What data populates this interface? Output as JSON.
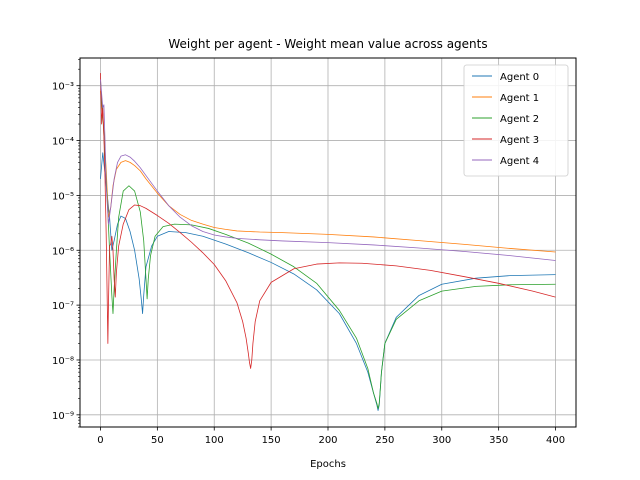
{
  "chart_data": {
    "type": "line",
    "title": "Weight per agent - Weight mean value across agents",
    "xlabel": "Epochs",
    "ylabel": "",
    "xlim": [
      -18,
      418
    ],
    "ylim": [
      6e-10,
      0.0032
    ],
    "yscale": "log",
    "grid": true,
    "legend": "top-right",
    "x_ticks": [
      0,
      50,
      100,
      150,
      200,
      250,
      300,
      350,
      400
    ],
    "x_tick_labels": [
      "0",
      "50",
      "100",
      "150",
      "200",
      "250",
      "300",
      "350",
      "400"
    ],
    "y_ticks": [
      1e-09,
      1e-08,
      1e-07,
      1e-06,
      1e-05,
      0.0001,
      0.001
    ],
    "y_tick_labels": [
      "10⁻⁹",
      "10⁻⁸",
      "10⁻⁷",
      "10⁻⁶",
      "10⁻⁵",
      "10⁻⁴",
      "10⁻³"
    ],
    "series": [
      {
        "name": "Agent 0",
        "color": "#1f77b4",
        "x": [
          0,
          2,
          4,
          6,
          8,
          10,
          12,
          15,
          18,
          22,
          26,
          30,
          34,
          36,
          37,
          38,
          40,
          45,
          50,
          60,
          75,
          90,
          110,
          130,
          150,
          170,
          190,
          210,
          225,
          235,
          240,
          243,
          244,
          245,
          246,
          247,
          250,
          260,
          280,
          300,
          330,
          360,
          400
        ],
        "y": [
          2e-05,
          6e-05,
          2.5e-05,
          1e-05,
          4e-06,
          1e-06,
          1.5e-06,
          3e-06,
          4.2e-06,
          3.8e-06,
          2.2e-06,
          1e-06,
          3e-07,
          1.2e-07,
          7e-08,
          1.5e-07,
          5e-07,
          1.2e-06,
          1.8e-06,
          2.2e-06,
          2.1e-06,
          1.8e-06,
          1.3e-06,
          9e-07,
          6e-07,
          3.7e-07,
          1.9e-07,
          7e-08,
          2e-08,
          6e-09,
          2.5e-09,
          1.5e-09,
          1.2e-09,
          1.5e-09,
          3e-09,
          6e-09,
          2e-08,
          6e-08,
          1.5e-07,
          2.4e-07,
          3.1e-07,
          3.45e-07,
          3.6e-07
        ]
      },
      {
        "name": "Agent 1",
        "color": "#ff7f0e",
        "x": [
          0,
          2,
          3,
          5,
          7,
          9,
          11,
          14,
          18,
          22,
          26,
          30,
          35,
          40,
          50,
          60,
          70,
          80,
          90,
          100,
          110,
          120,
          130,
          140,
          160,
          200,
          240,
          280,
          320,
          360,
          400
        ],
        "y": [
          0.0008,
          0.0003,
          0.00015,
          3e-05,
          4e-06,
          6e-06,
          1.5e-05,
          3e-05,
          4e-05,
          4.3e-05,
          4e-05,
          3.5e-05,
          2.8e-05,
          2e-05,
          1.1e-05,
          6.5e-06,
          4.5e-06,
          3.5e-06,
          3e-06,
          2.6e-06,
          2.4e-06,
          2.25e-06,
          2.2e-06,
          2.15e-06,
          2.1e-06,
          1.95e-06,
          1.75e-06,
          1.5e-06,
          1.28e-06,
          1.08e-06,
          9.3e-07
        ]
      },
      {
        "name": "Agent 2",
        "color": "#2ca02c",
        "x": [
          0,
          2,
          4,
          6,
          8,
          10,
          11,
          12,
          14,
          16,
          20,
          25,
          30,
          35,
          38,
          40,
          41,
          42,
          44,
          48,
          55,
          65,
          80,
          95,
          110,
          130,
          150,
          170,
          190,
          210,
          225,
          235,
          240,
          243,
          244,
          245,
          246,
          247,
          250,
          260,
          280,
          300,
          330,
          360,
          400
        ],
        "y": [
          0.0012,
          0.0003,
          5e-05,
          8e-06,
          1e-06,
          1.5e-07,
          7e-08,
          2e-07,
          1e-06,
          4e-06,
          1.2e-05,
          1.5e-05,
          1.2e-05,
          5e-06,
          1.5e-06,
          3e-07,
          1.3e-07,
          3e-07,
          8e-07,
          1.8e-06,
          2.7e-06,
          3e-06,
          2.9e-06,
          2.5e-06,
          1.95e-06,
          1.35e-06,
          8.5e-07,
          5e-07,
          2.5e-07,
          8e-08,
          2.5e-08,
          7e-09,
          2.5e-09,
          1.6e-09,
          1.3e-09,
          1.6e-09,
          3e-09,
          6e-09,
          2e-08,
          5.5e-08,
          1.2e-07,
          1.8e-07,
          2.2e-07,
          2.35e-07,
          2.4e-07
        ]
      },
      {
        "name": "Agent 3",
        "color": "#d62728",
        "x": [
          0,
          1,
          2,
          3,
          4,
          5,
          6,
          6.5,
          7,
          8,
          9,
          10,
          11,
          12,
          13,
          14,
          16,
          20,
          25,
          30,
          35,
          40,
          50,
          60,
          70,
          80,
          90,
          100,
          110,
          120,
          125,
          128,
          130,
          131,
          132,
          133,
          134,
          136,
          140,
          150,
          170,
          190,
          210,
          230,
          260,
          290,
          320,
          350,
          380,
          400
        ],
        "y": [
          0.0017,
          0.0002,
          0.0004,
          0.00012,
          2e-05,
          2e-06,
          1e-07,
          2e-08,
          1e-07,
          1.2e-06,
          1.3e-06,
          1.8e-06,
          1e-06,
          3e-07,
          1.4e-07,
          4e-07,
          1.2e-06,
          3e-06,
          5.5e-06,
          6.7e-06,
          6.5e-06,
          5.8e-06,
          4.3e-06,
          3.1e-06,
          2.1e-06,
          1.4e-06,
          9e-07,
          5.5e-07,
          2.8e-07,
          1.1e-07,
          5e-08,
          2.5e-08,
          1.3e-08,
          9e-09,
          7e-09,
          1e-08,
          2e-08,
          5e-08,
          1.2e-07,
          2.6e-07,
          4.6e-07,
          5.6e-07,
          5.9e-07,
          5.8e-07,
          5.2e-07,
          4.3e-07,
          3.3e-07,
          2.5e-07,
          1.8e-07,
          1.4e-07
        ]
      },
      {
        "name": "Agent 4",
        "color": "#9467bd",
        "x": [
          0,
          2,
          3,
          4,
          5,
          7,
          9,
          12,
          15,
          18,
          22,
          26,
          30,
          35,
          40,
          50,
          60,
          70,
          80,
          90,
          100,
          110,
          120,
          140,
          160,
          200,
          240,
          280,
          320,
          360,
          400
        ],
        "y": [
          0.0013,
          0.0004,
          0.00045,
          0.0001,
          1.5e-05,
          3e-06,
          6e-06,
          2e-05,
          4e-05,
          5.2e-05,
          5.5e-05,
          5e-05,
          4.2e-05,
          3.2e-05,
          2.3e-05,
          1.2e-05,
          6.5e-06,
          4e-06,
          2.8e-06,
          2.2e-06,
          1.9e-06,
          1.75e-06,
          1.65e-06,
          1.55e-06,
          1.48e-06,
          1.38e-06,
          1.25e-06,
          1.1e-06,
          9.5e-07,
          8e-07,
          6.5e-07
        ]
      }
    ]
  }
}
